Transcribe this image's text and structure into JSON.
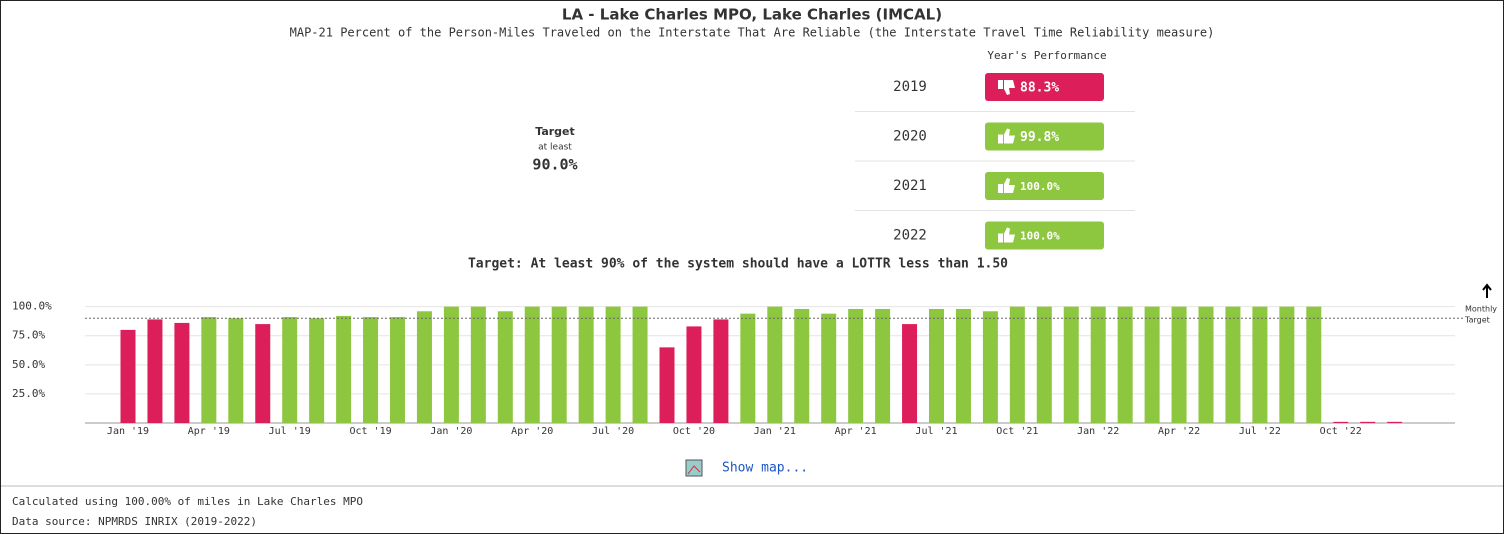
{
  "header": {
    "title": "LA - Lake Charles MPO, Lake Charles (IMCAL)",
    "subtitle": "MAP-21 Percent of the Person-Miles Traveled on the Interstate That Are Reliable (the Interstate Travel Time Reliability measure)"
  },
  "target": {
    "label": "Target",
    "qualifier": "at least",
    "value": "90.0%"
  },
  "performance": {
    "heading": "Year's Performance",
    "rows": [
      {
        "year": "2019",
        "value": "88.3%",
        "color": "#dc1f5a",
        "icon": "down"
      },
      {
        "year": "2020",
        "value": "99.8%",
        "color": "#8dc63f",
        "icon": "up"
      },
      {
        "year": "2021",
        "value": "100.0%",
        "color": "#8dc63f",
        "icon": "up"
      },
      {
        "year": "2022",
        "value": "100.0%",
        "color": "#8dc63f",
        "icon": "up"
      }
    ]
  },
  "chart_data": {
    "type": "bar",
    "title": "Target: At least 90% of the system should have a LOTTR less than 1.50",
    "categories": [
      "Jan '19",
      null,
      null,
      "Apr '19",
      null,
      null,
      "Jul '19",
      null,
      null,
      "Oct '19",
      null,
      null,
      "Jan '20",
      null,
      null,
      "Apr '20",
      null,
      null,
      "Jul '20",
      null,
      null,
      "Oct '20",
      null,
      null,
      "Jan '21",
      null,
      null,
      "Apr '21",
      null,
      null,
      "Jul '21",
      null,
      null,
      "Oct '21",
      null,
      null,
      "Jan '22",
      null,
      null,
      "Apr '22",
      null,
      null,
      "Jul '22",
      null,
      null,
      "Oct '22",
      null,
      null
    ],
    "values": [
      80,
      89,
      86,
      91,
      90,
      85,
      91,
      90,
      92,
      91,
      91,
      96,
      100,
      100,
      96,
      100,
      100,
      100,
      100,
      100,
      65,
      83,
      89,
      94,
      100,
      98,
      94,
      98,
      98,
      85,
      98,
      98,
      96,
      100,
      100,
      100,
      100,
      100,
      100,
      100,
      100,
      100,
      100,
      100,
      100,
      1,
      1,
      1
    ],
    "target": 90,
    "target_label": [
      "Monthly",
      "Target"
    ],
    "colors": {
      "below": "#dc1f5a",
      "meets": "#8dc63f"
    },
    "ylim": [
      0,
      110
    ],
    "yticks": [
      {
        "value": 25,
        "label": "25.0%"
      },
      {
        "value": 50,
        "label": "50.0%"
      },
      {
        "value": 75,
        "label": "75.0%"
      },
      {
        "value": 100,
        "label": "100.0%"
      }
    ],
    "grid": true
  },
  "links": {
    "map": "Show map..."
  },
  "footer": {
    "coverage": "Calculated using 100.00% of miles in Lake Charles MPO",
    "source": "Data source: NPMRDS INRIX (2019-2022)"
  }
}
